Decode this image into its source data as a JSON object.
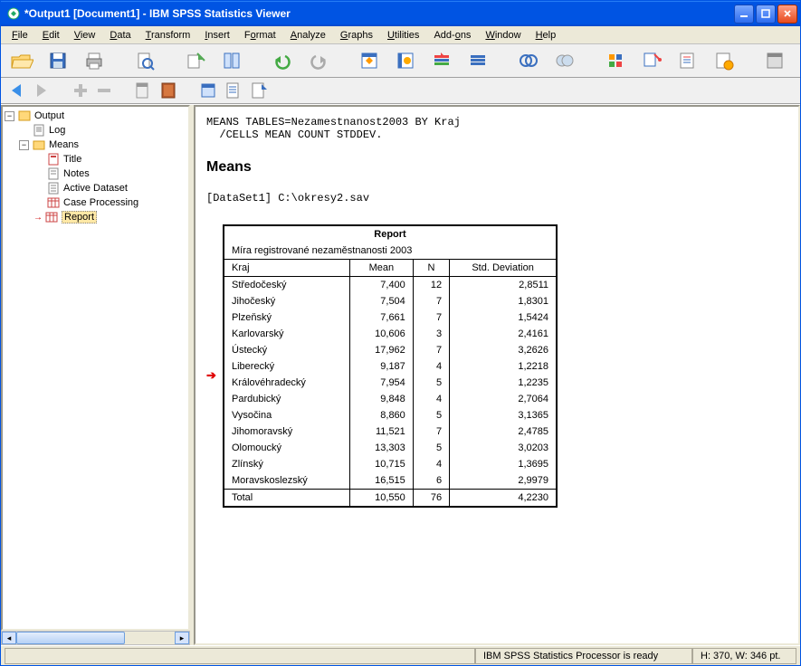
{
  "window": {
    "title": "*Output1 [Document1] - IBM SPSS Statistics Viewer"
  },
  "menubar": [
    {
      "label": "File",
      "u": 0
    },
    {
      "label": "Edit",
      "u": 0
    },
    {
      "label": "View",
      "u": 0
    },
    {
      "label": "Data",
      "u": 0
    },
    {
      "label": "Transform",
      "u": 0
    },
    {
      "label": "Insert",
      "u": 0
    },
    {
      "label": "Format",
      "u": 1
    },
    {
      "label": "Analyze",
      "u": 0
    },
    {
      "label": "Graphs",
      "u": 0
    },
    {
      "label": "Utilities",
      "u": 0
    },
    {
      "label": "Add-ons",
      "u": 4
    },
    {
      "label": "Window",
      "u": 0
    },
    {
      "label": "Help",
      "u": 0
    }
  ],
  "tree": {
    "root": "Output",
    "children": [
      {
        "label": "Log",
        "icon": "log"
      },
      {
        "label": "Means",
        "icon": "folder",
        "expanded": true,
        "children": [
          {
            "label": "Title",
            "icon": "title"
          },
          {
            "label": "Notes",
            "icon": "notes"
          },
          {
            "label": "Active Dataset",
            "icon": "dataset"
          },
          {
            "label": "Case Processing",
            "icon": "table"
          },
          {
            "label": "Report",
            "icon": "table",
            "selected": true
          }
        ]
      }
    ]
  },
  "syntax": "MEANS TABLES=Nezamestnanost2003 BY Kraj\n  /CELLS MEAN COUNT STDDEV.",
  "heading": "Means",
  "dataset": "[DataSet1] C:\\okresy2.sav",
  "report": {
    "title": "Report",
    "desc": "Míra registrované nezaměstnanosti 2003",
    "columns": [
      "Kraj",
      "Mean",
      "N",
      "Std. Deviation"
    ],
    "rows": [
      [
        "Středočeský",
        "7,400",
        "12",
        "2,8511"
      ],
      [
        "Jihočeský",
        "7,504",
        "7",
        "1,8301"
      ],
      [
        "Plzeňský",
        "7,661",
        "7",
        "1,5424"
      ],
      [
        "Karlovarský",
        "10,606",
        "3",
        "2,4161"
      ],
      [
        "Ústecký",
        "17,962",
        "7",
        "3,2626"
      ],
      [
        "Liberecký",
        "9,187",
        "4",
        "1,2218"
      ],
      [
        "Královéhradecký",
        "7,954",
        "5",
        "1,2235"
      ],
      [
        "Pardubický",
        "9,848",
        "4",
        "2,7064"
      ],
      [
        "Vysočina",
        "8,860",
        "5",
        "3,1365"
      ],
      [
        "Jihomoravský",
        "11,521",
        "7",
        "2,4785"
      ],
      [
        "Olomoucký",
        "13,303",
        "5",
        "3,0203"
      ],
      [
        "Zlínský",
        "10,715",
        "4",
        "1,3695"
      ],
      [
        "Moravskoslezský",
        "16,515",
        "6",
        "2,9979"
      ],
      [
        "Total",
        "10,550",
        "76",
        "4,2230"
      ]
    ],
    "arrow_row_index": 5
  },
  "status": {
    "processor": "IBM SPSS Statistics Processor is ready",
    "dims": "H: 370, W: 346 pt."
  },
  "colors": {
    "title_gradient_top": "#3a93ff",
    "title_gradient_mid": "#0054e3",
    "close_top": "#ff9e84",
    "close_bottom": "#e74b1e",
    "selection": "#ffe8a6"
  }
}
